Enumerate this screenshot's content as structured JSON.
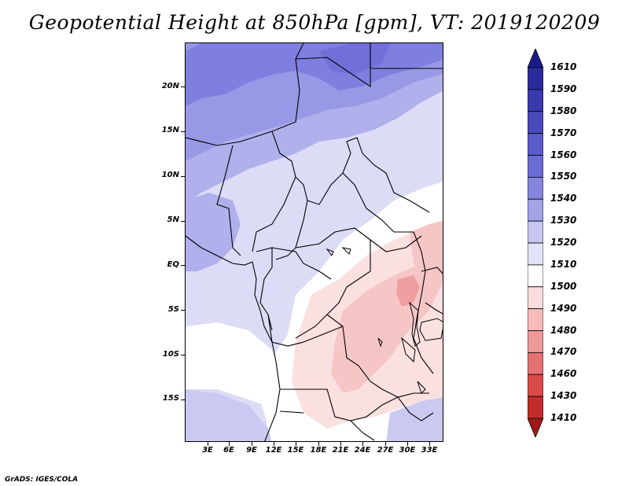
{
  "title": "Geopotential Height at 850hPa [gpm], VT: 2019120209",
  "footer": "GrADS: IGES/COLA",
  "lat_labels": [
    "20N",
    "15N",
    "10N",
    "5N",
    "EQ",
    "5S",
    "10S",
    "15S"
  ],
  "lon_labels": [
    "3E",
    "6E",
    "9E",
    "12E",
    "15E",
    "18E",
    "21E",
    "24E",
    "27E",
    "30E",
    "33E"
  ],
  "colorbar": {
    "levels": [
      "1610",
      "1590",
      "1580",
      "1570",
      "1560",
      "1550",
      "1540",
      "1530",
      "1520",
      "1510",
      "1500",
      "1490",
      "1480",
      "1470",
      "1460",
      "1430",
      "1410"
    ],
    "colors": [
      "#1a1a8c",
      "#2b2b9e",
      "#3939ad",
      "#4a4abc",
      "#5a5ac9",
      "#6b6bd4",
      "#8585dd",
      "#a3a3e6",
      "#c6c6f0",
      "#e3e3f8",
      "#ffffff",
      "#fbdcdc",
      "#f6bcbc",
      "#ee9a9a",
      "#e47272",
      "#d94b4b",
      "#c42b2b",
      "#a01a1a"
    ]
  },
  "field_colors": {
    "c1560": "#7f7fe0",
    "c1550": "#9898e6",
    "c1540": "#b0b0ec",
    "c1530": "#c9c9f2",
    "c1520": "#dcdcf7",
    "c1510": "#ffffff",
    "c1500": "#fbe0e0",
    "c1490": "#f6c6c6",
    "c1480": "#ef9f9f"
  }
}
